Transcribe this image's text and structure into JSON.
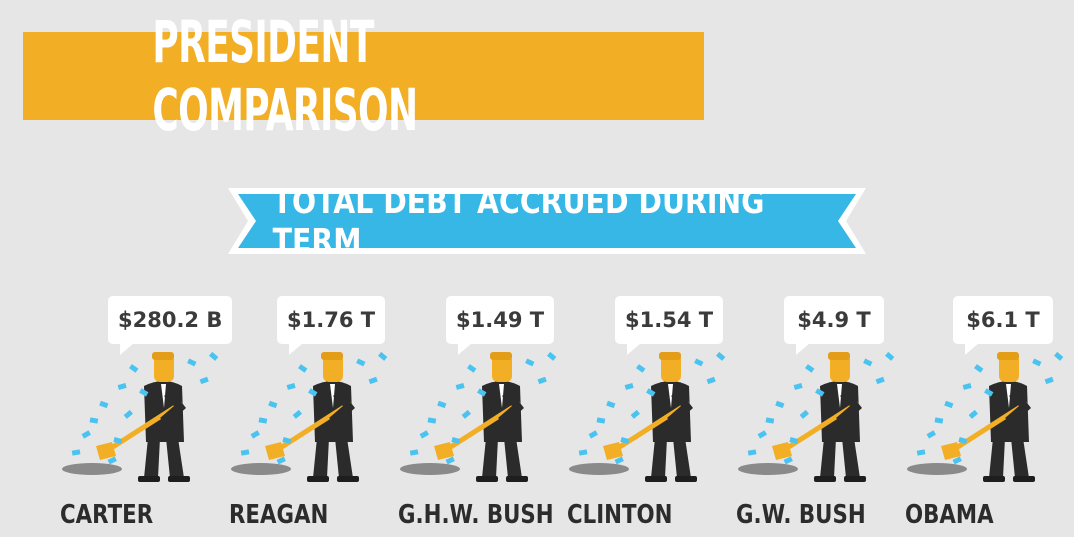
{
  "title": "PRESIDENT COMPARISON",
  "subtitle": "TOTAL DEBT ACCRUED DURING TERM",
  "colors": {
    "banner": "#f2ae24",
    "ribbon": "#37b7e6",
    "suit": "#2b2b2b",
    "skin": "#f2ae24",
    "money": "#4bc3f0"
  },
  "presidents": [
    {
      "name": "CARTER",
      "debt": "$280.2 B"
    },
    {
      "name": "REAGAN",
      "debt": "$1.76 T"
    },
    {
      "name": "G.H.W. BUSH",
      "debt": "$1.49 T"
    },
    {
      "name": "CLINTON",
      "debt": "$1.54 T"
    },
    {
      "name": "G.W. BUSH",
      "debt": "$4.9 T"
    },
    {
      "name": "OBAMA",
      "debt": "$6.1 T"
    }
  ]
}
